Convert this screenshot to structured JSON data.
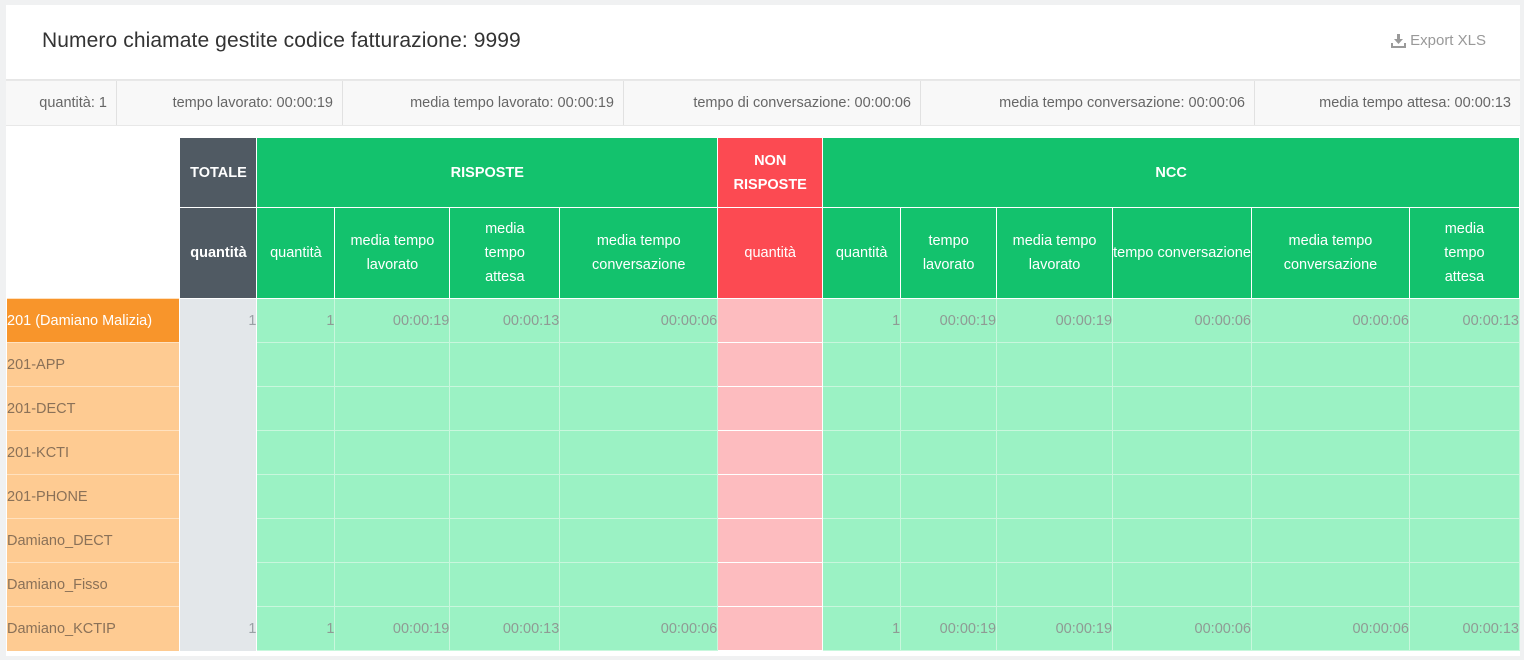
{
  "header": {
    "title": "Numero chiamate gestite codice fatturazione: 9999",
    "export_label": "Export XLS",
    "export_icon": "download-icon"
  },
  "stats": [
    {
      "label": "quantità: 1"
    },
    {
      "label": "tempo lavorato: 00:00:19"
    },
    {
      "label": "media tempo lavorato: 00:00:19"
    },
    {
      "label": "tempo di conversazione: 00:00:06"
    },
    {
      "label": "media tempo conversazione: 00:00:06"
    },
    {
      "label": "media tempo attesa: 00:00:13"
    }
  ],
  "table": {
    "groups": {
      "totale": "TOTALE",
      "risposte": "RISPOSTE",
      "non_risposte": "NON RISPOSTE",
      "ncc": "NCC"
    },
    "columns": {
      "totale_quantita": "quantità",
      "risposte": [
        "quantità",
        "media tempo lavorato",
        "media tempo attesa",
        "media tempo conversazione"
      ],
      "non_risposte": [
        "quantità"
      ],
      "ncc": [
        "quantità",
        "tempo lavorato",
        "media tempo lavorato",
        "tempo conversazione",
        "media tempo conversazione",
        "media tempo attesa"
      ]
    },
    "rows": [
      {
        "name": "201 (Damiano Malizia)",
        "totale": "1",
        "risposte": [
          "1",
          "00:00:19",
          "00:00:13",
          "00:00:06"
        ],
        "non_risposte": [
          ""
        ],
        "ncc": [
          "1",
          "00:00:19",
          "00:00:19",
          "00:00:06",
          "00:00:06",
          "00:00:13"
        ]
      },
      {
        "name": "201-APP",
        "totale": "",
        "risposte": [
          "",
          "",
          "",
          ""
        ],
        "non_risposte": [
          ""
        ],
        "ncc": [
          "",
          "",
          "",
          "",
          "",
          ""
        ]
      },
      {
        "name": "201-DECT",
        "totale": "",
        "risposte": [
          "",
          "",
          "",
          ""
        ],
        "non_risposte": [
          ""
        ],
        "ncc": [
          "",
          "",
          "",
          "",
          "",
          ""
        ]
      },
      {
        "name": "201-KCTI",
        "totale": "",
        "risposte": [
          "",
          "",
          "",
          ""
        ],
        "non_risposte": [
          ""
        ],
        "ncc": [
          "",
          "",
          "",
          "",
          "",
          ""
        ]
      },
      {
        "name": "201-PHONE",
        "totale": "",
        "risposte": [
          "",
          "",
          "",
          ""
        ],
        "non_risposte": [
          ""
        ],
        "ncc": [
          "",
          "",
          "",
          "",
          "",
          ""
        ]
      },
      {
        "name": "Damiano_DECT",
        "totale": "",
        "risposte": [
          "",
          "",
          "",
          ""
        ],
        "non_risposte": [
          ""
        ],
        "ncc": [
          "",
          "",
          "",
          "",
          "",
          ""
        ]
      },
      {
        "name": "Damiano_Fisso",
        "totale": "",
        "risposte": [
          "",
          "",
          "",
          ""
        ],
        "non_risposte": [
          ""
        ],
        "ncc": [
          "",
          "",
          "",
          "",
          "",
          ""
        ]
      },
      {
        "name": "Damiano_KCTIP",
        "totale": "1",
        "risposte": [
          "1",
          "00:00:19",
          "00:00:13",
          "00:00:06"
        ],
        "non_risposte": [
          ""
        ],
        "ncc": [
          "1",
          "00:00:19",
          "00:00:19",
          "00:00:06",
          "00:00:06",
          "00:00:13"
        ]
      }
    ]
  },
  "colors": {
    "green_header": "#13c26d",
    "green_cell": "#9bf2c4",
    "red_header": "#fc4a52",
    "red_cell": "#fdbcbf",
    "dark_header": "#505a63",
    "orange_active": "#f8952b",
    "orange_row": "#fecb92"
  }
}
